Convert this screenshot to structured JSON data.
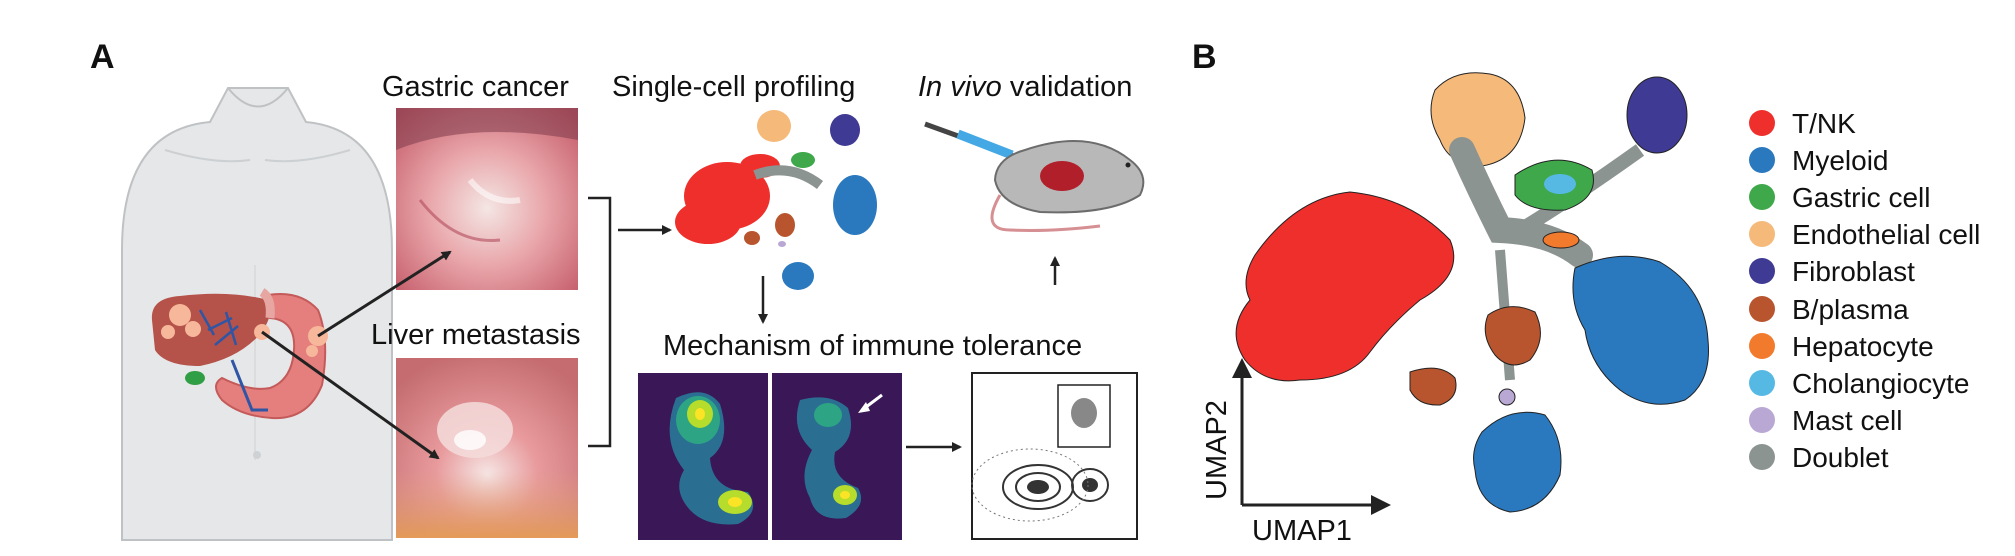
{
  "panel_a": {
    "letter": "A",
    "gastric_cancer_label": "Gastric cancer",
    "liver_metastasis_label": "Liver metastasis",
    "single_cell_label": "Single-cell profiling",
    "in_vivo_italic": "In vivo",
    "validation_label": " validation",
    "mechanism_label": "Mechanism of immune tolerance"
  },
  "panel_b": {
    "letter": "B",
    "xlabel": "UMAP1",
    "ylabel": "UMAP2",
    "legend": [
      {
        "label": "T/NK",
        "color": "#ee2f2b"
      },
      {
        "label": "Myeloid",
        "color": "#2a78be"
      },
      {
        "label": "Gastric cell",
        "color": "#3ea84a"
      },
      {
        "label": "Endothelial cell",
        "color": "#f5b97a"
      },
      {
        "label": "Fibroblast",
        "color": "#3f3a93"
      },
      {
        "label": "B/plasma",
        "color": "#b9552e"
      },
      {
        "label": "Hepatocyte",
        "color": "#f27a2d"
      },
      {
        "label": "Cholangiocyte",
        "color": "#56b9e4"
      },
      {
        "label": "Mast cell",
        "color": "#b9a8d3"
      },
      {
        "label": "Doublet",
        "color": "#8c9491"
      }
    ]
  }
}
